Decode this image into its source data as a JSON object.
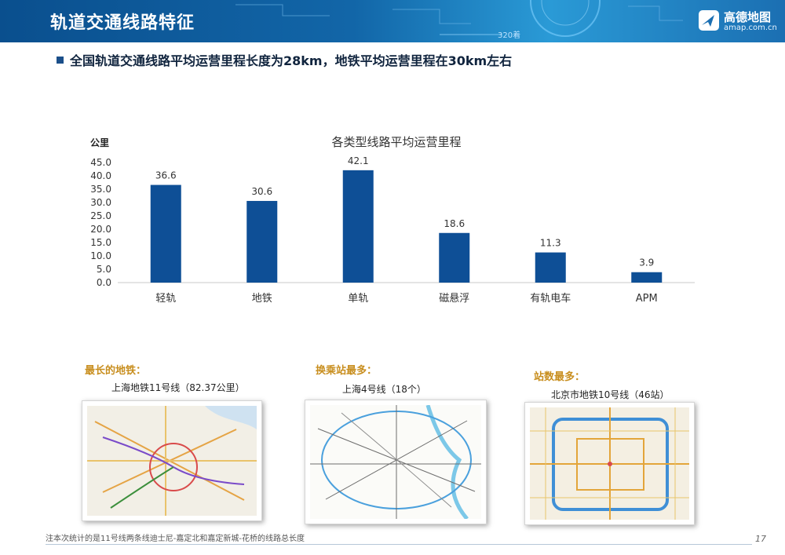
{
  "header": {
    "title": "轨道交通线路特征",
    "tag": "320着",
    "logo_name": "高德地图",
    "logo_url": "amap.com.cn"
  },
  "headline": "全国轨道交通线路平均运营里程长度为28km，地铁平均运营里程在30km左右",
  "chart_data": {
    "type": "bar",
    "title": "各类型线路平均运营里程",
    "ylabel": "公里",
    "categories": [
      "轻轨",
      "地铁",
      "单轨",
      "磁悬浮",
      "有轨电车",
      "APM"
    ],
    "values": [
      36.6,
      30.6,
      42.1,
      18.6,
      11.3,
      3.9
    ],
    "value_labels": [
      "36.6",
      "30.6",
      "42.1",
      "18.6",
      "11.3",
      "3.9"
    ],
    "y_ticks": [
      "0.0",
      "5.0",
      "10.0",
      "15.0",
      "20.0",
      "25.0",
      "30.0",
      "35.0",
      "40.0",
      "45.0"
    ],
    "ylim": [
      0,
      45
    ],
    "bar_color": "#0e4f96",
    "grid": false
  },
  "maps": [
    {
      "label": "最长的地铁：",
      "caption": "上海地铁11号线（82.37公里）"
    },
    {
      "label": "换乘站最多：",
      "caption": "上海4号线（18个）"
    },
    {
      "label": "站数最多：",
      "caption": "北京市地铁10号线（46站）"
    }
  ],
  "footnote": "注本次统计的是11号线两条线迪士尼-嘉定北和嘉定新城-花桥的线路总长度",
  "page_number": "17"
}
